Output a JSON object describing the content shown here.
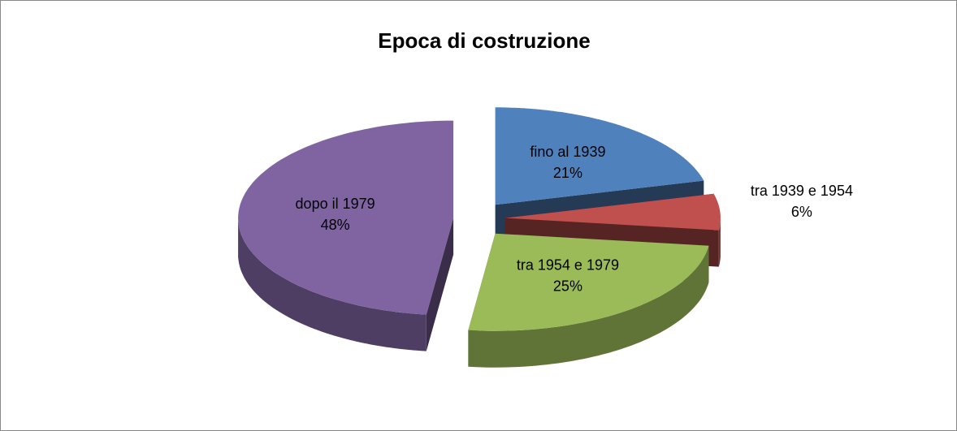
{
  "chart_data": {
    "type": "pie",
    "title": "Epoca di costruzione",
    "categories": [
      "fino al 1939",
      "tra 1939 e 1954",
      "tra 1954 e 1979",
      "dopo il 1979"
    ],
    "values": [
      21,
      6,
      25,
      48
    ],
    "value_labels": [
      "21%",
      "6%",
      "25%",
      "48%"
    ],
    "colors": [
      "#4f81bd",
      "#c0504d",
      "#9bbb59",
      "#8064a2"
    ]
  }
}
